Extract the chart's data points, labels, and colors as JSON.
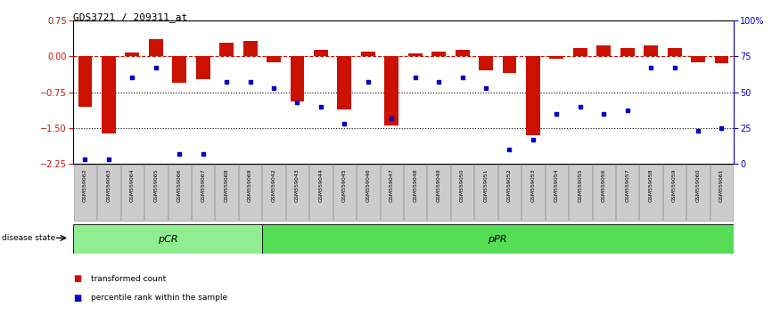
{
  "title": "GDS3721 / 209311_at",
  "samples": [
    "GSM559062",
    "GSM559063",
    "GSM559064",
    "GSM559065",
    "GSM559066",
    "GSM559067",
    "GSM559068",
    "GSM559069",
    "GSM559042",
    "GSM559043",
    "GSM559044",
    "GSM559045",
    "GSM559046",
    "GSM559047",
    "GSM559048",
    "GSM559049",
    "GSM559050",
    "GSM559051",
    "GSM559052",
    "GSM559053",
    "GSM559054",
    "GSM559055",
    "GSM559056",
    "GSM559057",
    "GSM559058",
    "GSM559059",
    "GSM559060",
    "GSM559061"
  ],
  "transformed_count": [
    -1.05,
    -1.62,
    0.08,
    0.35,
    -0.55,
    -0.48,
    0.28,
    0.32,
    -0.12,
    -0.95,
    0.13,
    -1.12,
    0.1,
    -1.45,
    0.07,
    0.1,
    0.13,
    -0.3,
    -0.35,
    -1.65,
    -0.05,
    0.18,
    0.22,
    0.18,
    0.22,
    0.18,
    -0.12,
    -0.15
  ],
  "percentile_rank": [
    3,
    3,
    60,
    67,
    7,
    7,
    57,
    57,
    53,
    43,
    40,
    28,
    57,
    32,
    60,
    57,
    60,
    53,
    10,
    17,
    35,
    40,
    35,
    37,
    67,
    67,
    23,
    25
  ],
  "group_pCR_count": 8,
  "ylim_left": [
    -2.25,
    0.75
  ],
  "yticks_left": [
    0.75,
    0,
    -0.75,
    -1.5,
    -2.25
  ],
  "yticks_right_pct": [
    100,
    75,
    50,
    25,
    0
  ],
  "bar_color": "#cc1100",
  "dot_color": "#0000cc",
  "pCR_color": "#90ee90",
  "pPR_color": "#55dd55",
  "hline_y": 0,
  "dotted_lines": [
    -0.75,
    -1.5
  ],
  "legend_red": "transformed count",
  "legend_blue": "percentile rank within the sample",
  "disease_state_label": "disease state",
  "pCR_label": "pCR",
  "pPR_label": "pPR"
}
